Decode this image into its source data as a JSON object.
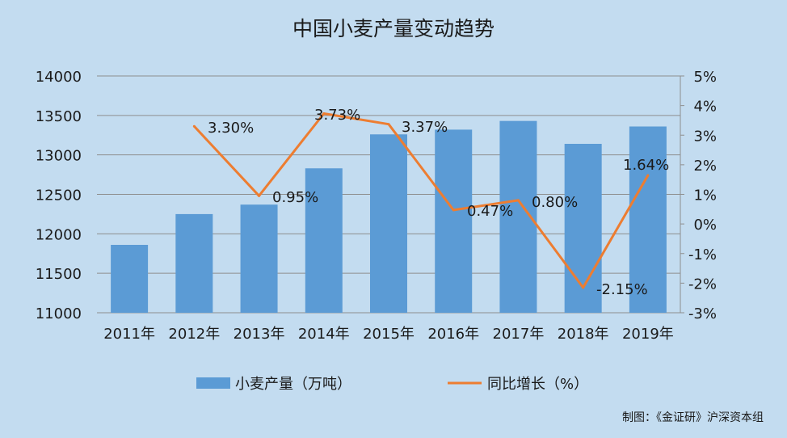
{
  "chart_data": {
    "type": "bar+line",
    "title": "中国小麦产量变动趋势",
    "categories": [
      "2011年",
      "2012年",
      "2013年",
      "2014年",
      "2015年",
      "2016年",
      "2017年",
      "2018年",
      "2019年"
    ],
    "series": [
      {
        "name": "小麦产量（万吨）",
        "type": "bar",
        "axis": "left",
        "color": "#5b9bd5",
        "values": [
          11860,
          12250,
          12370,
          12830,
          13260,
          13320,
          13430,
          13140,
          13360
        ]
      },
      {
        "name": "同比增长（%）",
        "type": "line",
        "axis": "right",
        "color": "#ed7d31",
        "values": [
          null,
          3.3,
          0.95,
          3.73,
          3.37,
          0.47,
          0.8,
          -2.15,
          1.64
        ],
        "labels": [
          "",
          "3.30%",
          "0.95%",
          "3.73%",
          "3.37%",
          "0.47%",
          "0.80%",
          "-2.15%",
          "1.64%"
        ]
      }
    ],
    "y_left": {
      "ylim": [
        11000,
        14000
      ],
      "ticks": [
        "11000",
        "11500",
        "12000",
        "12500",
        "13000",
        "13500",
        "14000"
      ]
    },
    "y_right": {
      "ylim": [
        -3,
        5
      ],
      "ticks": [
        "-3%",
        "-2%",
        "-1%",
        "0%",
        "1%",
        "2%",
        "3%",
        "4%",
        "5%"
      ]
    },
    "grid": true,
    "legend": "bottom"
  },
  "footer": {
    "credit": "制图：《金证研》沪深资本组"
  },
  "colors": {
    "background": "#c3dcf0",
    "bar": "#5b9bd5",
    "line": "#ed7d31",
    "grid": "#8e8e8e"
  }
}
